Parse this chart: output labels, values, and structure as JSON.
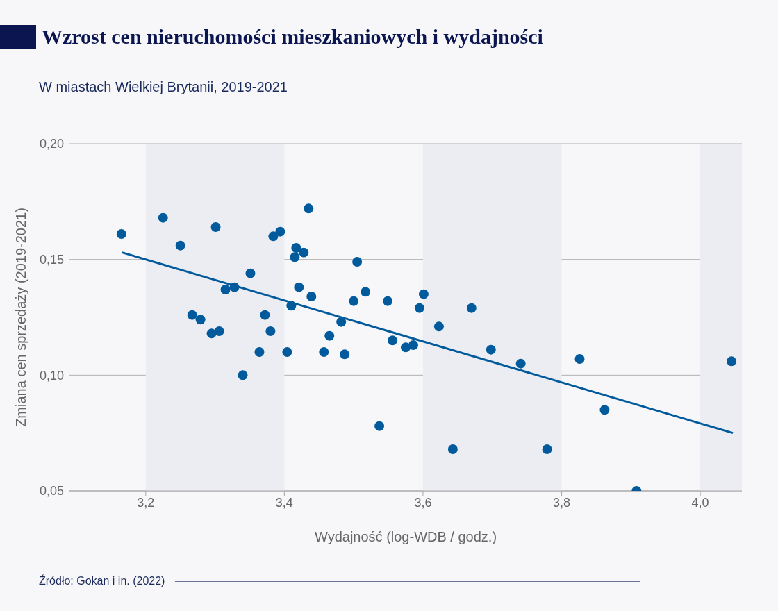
{
  "chart_data": {
    "type": "scatter",
    "title": "Wzrost cen nieruchomości mieszkaniowych i wydajności",
    "subtitle": "W miastach Wielkiej Brytanii, 2019-2021",
    "xlabel": "Wydajność (log-WDB / godz.)",
    "ylabel": "Zmiana cen sprzedaży (2019-2021)",
    "annotations": [
      "Źródło: Gokan i in. (2022)"
    ],
    "xlim": [
      3.09,
      4.06
    ],
    "ylim": [
      0.05,
      0.2
    ],
    "xticks": [
      {
        "value": 3.2,
        "label": "3,2"
      },
      {
        "value": 3.4,
        "label": "3,4"
      },
      {
        "value": 3.6,
        "label": "3,6"
      },
      {
        "value": 3.8,
        "label": "3,8"
      },
      {
        "value": 4.0,
        "label": "4,0"
      }
    ],
    "yticks": [
      {
        "value": 0.05,
        "label": "0,05"
      },
      {
        "value": 0.1,
        "label": "0,10"
      },
      {
        "value": 0.15,
        "label": "0,15"
      },
      {
        "value": 0.2,
        "label": "0,20"
      }
    ],
    "grid": "y",
    "bands": [
      {
        "axis": "x",
        "from": 3.2,
        "to": 3.4,
        "color": "#ecedf3"
      },
      {
        "axis": "x",
        "from": 3.6,
        "to": 3.8,
        "color": "#ecedf3"
      },
      {
        "axis": "x",
        "from": 4.0,
        "to": 4.06,
        "color": "#ecedf3"
      }
    ],
    "series": [
      {
        "color": "#005a9c",
        "marker": "circle",
        "x": [
          3.165,
          3.225,
          3.25,
          3.301,
          3.267,
          3.279,
          3.295,
          3.306,
          3.315,
          3.328,
          3.34,
          3.351,
          3.364,
          3.372,
          3.38,
          3.384,
          3.394,
          3.435,
          3.417,
          3.415,
          3.428,
          3.421,
          3.41,
          3.404,
          3.439,
          3.457,
          3.465,
          3.482,
          3.487,
          3.5,
          3.505,
          3.517,
          3.537,
          3.549,
          3.556,
          3.575,
          3.586,
          3.595,
          3.601,
          3.623,
          3.643,
          3.67,
          3.698,
          3.741,
          3.779,
          3.826,
          3.862,
          3.908,
          4.045
        ],
        "values": [
          0.161,
          0.168,
          0.156,
          0.164,
          0.126,
          0.124,
          0.118,
          0.119,
          0.137,
          0.138,
          0.1,
          0.144,
          0.11,
          0.126,
          0.119,
          0.16,
          0.162,
          0.172,
          0.155,
          0.151,
          0.153,
          0.138,
          0.13,
          0.11,
          0.134,
          0.11,
          0.117,
          0.123,
          0.109,
          0.132,
          0.149,
          0.136,
          0.078,
          0.132,
          0.115,
          0.112,
          0.113,
          0.129,
          0.135,
          0.121,
          0.068,
          0.129,
          0.111,
          0.105,
          0.068,
          0.107,
          0.085,
          0.05,
          0.106
        ]
      },
      {
        "type": "line",
        "marker": "none",
        "color": "#005a9c",
        "x": [
          3.166,
          4.047
        ],
        "values": [
          0.153,
          0.075
        ]
      }
    ]
  }
}
